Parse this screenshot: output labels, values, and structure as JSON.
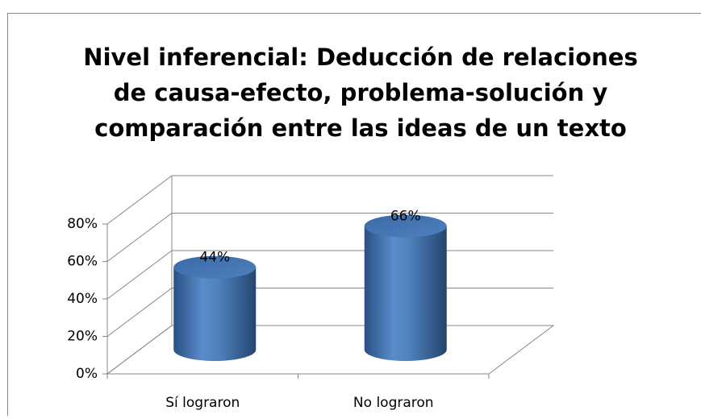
{
  "chart_data": {
    "type": "bar3d",
    "title": [
      "Nivel inferencial: Deducción de relaciones",
      "de causa-efecto, problema-solución y",
      "comparación entre las ideas de un texto"
    ],
    "categories": [
      "Sí lograron",
      "No lograron"
    ],
    "values": [
      44,
      66
    ],
    "value_labels": [
      "44%",
      "66%"
    ],
    "color": "#4f81bd",
    "ylim": [
      0,
      80
    ],
    "yticks": [
      {
        "value": 0,
        "label": "0%"
      },
      {
        "value": 20,
        "label": "20%"
      },
      {
        "value": 40,
        "label": "40%"
      },
      {
        "value": 60,
        "label": "60%"
      },
      {
        "value": 80,
        "label": "80%"
      }
    ],
    "grid": true
  }
}
